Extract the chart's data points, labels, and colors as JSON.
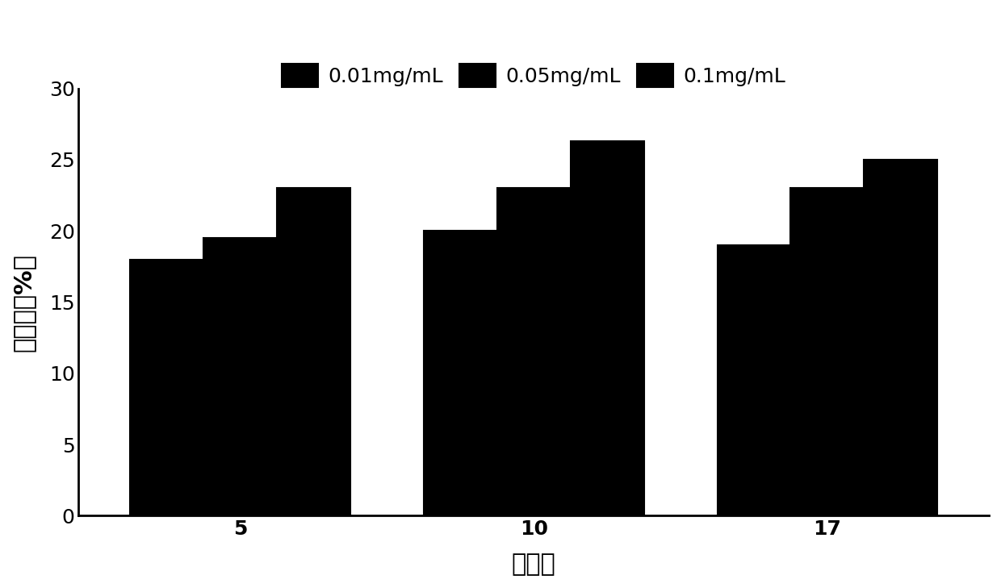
{
  "categories": [
    "5",
    "10",
    "17"
  ],
  "series": [
    {
      "label": "0.01mg/mL",
      "values": [
        18,
        20,
        19
      ]
    },
    {
      "label": "0.05mg/mL",
      "values": [
        19.5,
        23,
        23
      ]
    },
    {
      "label": "0.1mg/mL",
      "values": [
        23,
        26.3,
        25
      ]
    }
  ],
  "ylabel": "抑制率（%）",
  "xlabel": "抑菌剂",
  "ylim": [
    0,
    30
  ],
  "yticks": [
    0,
    5,
    10,
    15,
    20,
    25,
    30
  ],
  "bar_width": 0.25,
  "background_color": "#ffffff",
  "hatch_patterns": [
    "++",
    "...",
    "|||"
  ],
  "bar_facecolor": "#000000",
  "bar_edgecolor": "#000000",
  "hatch_color": "#ffffff",
  "legend_ncol": 3,
  "figsize": [
    12.4,
    7.29
  ],
  "dpi": 100
}
